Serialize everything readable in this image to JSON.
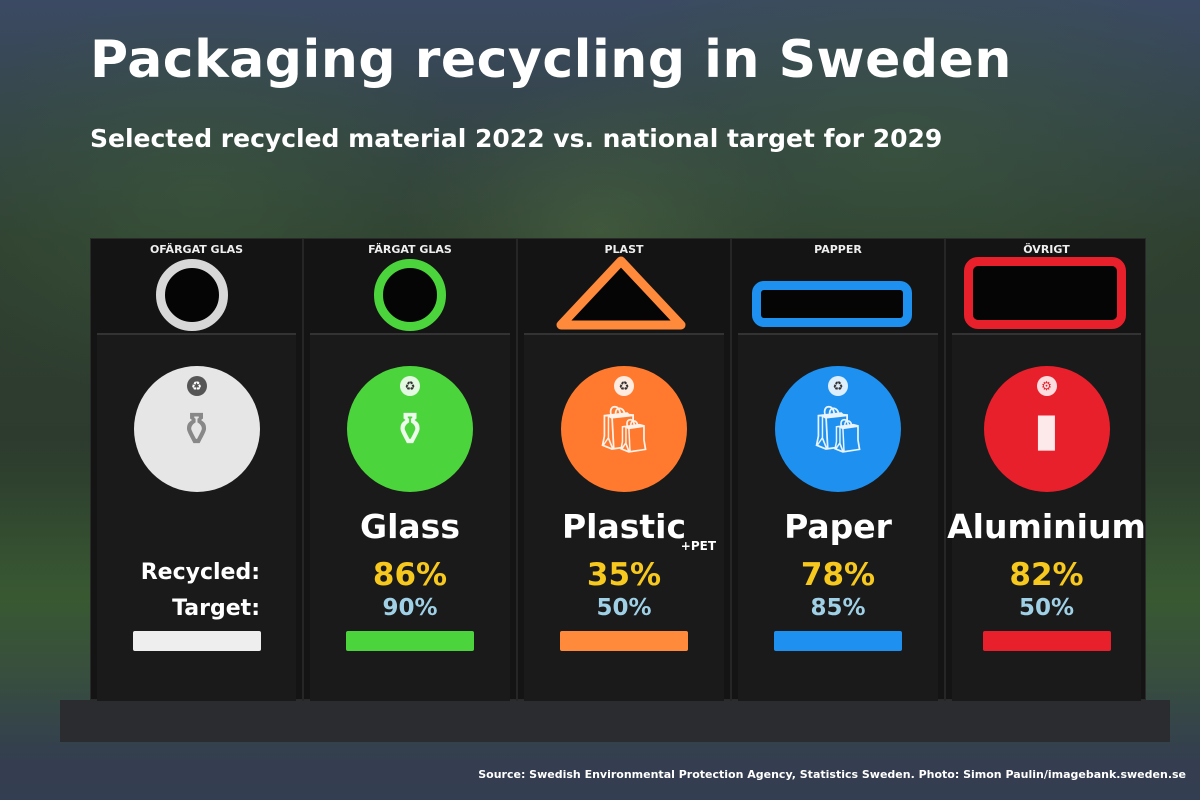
{
  "title": "Packaging recycling in Sweden",
  "subtitle": "Selected recycled material 2022 vs. national target for 2029",
  "row_labels": {
    "recycled": "Recycled:",
    "target": "Target:"
  },
  "bins": [
    {
      "label": "OFÄRGAT GLAS",
      "color": "#d8d8d8"
    },
    {
      "label": "FÄRGAT GLAS",
      "color": "#4cd43c"
    },
    {
      "label": "PLAST",
      "color": "#ff8a3c"
    },
    {
      "label": "PAPPER",
      "color": "#1e90f0"
    },
    {
      "label": "ÖVRIGT",
      "color": "#e8202c"
    }
  ],
  "chart_data": {
    "type": "table",
    "title": "Packaging recycling in Sweden",
    "categories": [
      "Glass",
      "Plastic",
      "Paper",
      "Aluminium"
    ],
    "note_plastic": "+PET",
    "series": [
      {
        "name": "Recycled 2022",
        "values": [
          86,
          35,
          78,
          82
        ],
        "labels": [
          "86%",
          "35%",
          "78%",
          "82%"
        ],
        "color": "#f7c81e"
      },
      {
        "name": "Target 2029",
        "values": [
          90,
          50,
          85,
          50
        ],
        "labels": [
          "90%",
          "50%",
          "85%",
          "50%"
        ],
        "color": "#9fd0e6"
      }
    ]
  },
  "source": "Source: Swedish Environmental Protection Agency, Statistics Sweden. Photo: Simon Paulin/imagebank.sweden.se"
}
